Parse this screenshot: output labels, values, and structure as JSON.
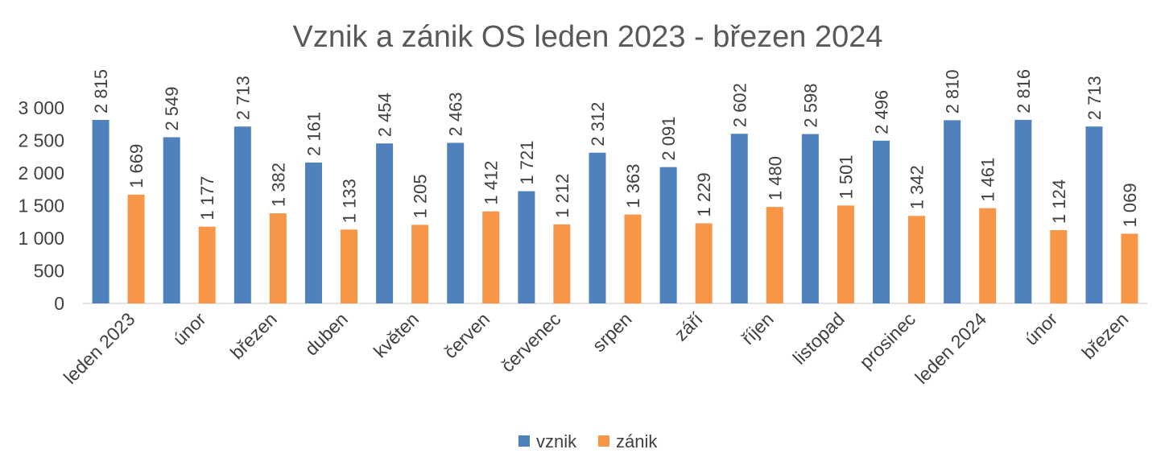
{
  "chart_data": {
    "type": "bar",
    "title": "Vznik a zánik OS leden 2023 - březen 2024",
    "xlabel": "",
    "ylabel": "",
    "categories": [
      "leden 2023",
      "únor",
      "březen",
      "duben",
      "květen",
      "červen",
      "červenec",
      "srpen",
      "září",
      "říjen",
      "listopad",
      "prosinec",
      "leden 2024",
      "únor",
      "březen"
    ],
    "series": [
      {
        "name": "vznik",
        "color": "#4f81bd",
        "values": [
          2815,
          2549,
          2713,
          2161,
          2454,
          2463,
          1721,
          2312,
          2091,
          2602,
          2598,
          2496,
          2810,
          2816,
          2713
        ],
        "labels": [
          "2 815",
          "2 549",
          "2 713",
          "2 161",
          "2 454",
          "2 463",
          "1 721",
          "2 312",
          "2 091",
          "2 602",
          "2 598",
          "2 496",
          "2 810",
          "2 816",
          "2 713"
        ]
      },
      {
        "name": "zánik",
        "color": "#f79646",
        "values": [
          1669,
          1177,
          1382,
          1133,
          1205,
          1412,
          1212,
          1363,
          1229,
          1480,
          1501,
          1342,
          1461,
          1124,
          1069
        ],
        "labels": [
          "1 669",
          "1 177",
          "1 382",
          "1 133",
          "1 205",
          "1 412",
          "1 212",
          "1 363",
          "1 229",
          "1 480",
          "1 501",
          "1 342",
          "1 461",
          "1 124",
          "1 069"
        ]
      }
    ],
    "ylim": [
      0,
      3000
    ],
    "yticks": [
      0,
      500,
      1000,
      1500,
      2000,
      2500,
      3000
    ],
    "ytick_labels": [
      "0",
      "500",
      "1 000",
      "1 500",
      "2 000",
      "2 500",
      "3 000"
    ],
    "grid": false,
    "legend": "bottom-center"
  }
}
